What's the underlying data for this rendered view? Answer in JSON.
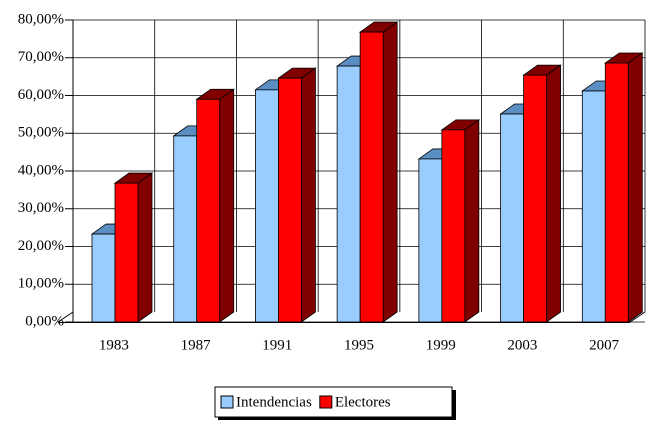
{
  "chart_data": {
    "type": "bar3d",
    "categories": [
      "1983",
      "1987",
      "1991",
      "1995",
      "1999",
      "2003",
      "2007"
    ],
    "series": [
      {
        "name": "Intendencias",
        "color": "#99ccff",
        "side_color": "#5b8fc4",
        "values": [
          23.3,
          49.3,
          61.5,
          67.8,
          43.2,
          55.1,
          61.2
        ]
      },
      {
        "name": "Electores",
        "color": "#ff0000",
        "side_color": "#800000",
        "values": [
          36.8,
          59,
          64.6,
          76.8,
          50.9,
          65.4,
          68.6
        ]
      }
    ],
    "ylim": [
      0,
      80
    ],
    "yticks": [
      {
        "value": 0,
        "label": "0,00%"
      },
      {
        "value": 10,
        "label": "10,00%"
      },
      {
        "value": 20,
        "label": "20,00%"
      },
      {
        "value": 30,
        "label": "30,00%"
      },
      {
        "value": 40,
        "label": "40,00%"
      },
      {
        "value": 50,
        "label": "50,00%"
      },
      {
        "value": 60,
        "label": "60,00%"
      },
      {
        "value": 70,
        "label": "70,00%"
      },
      {
        "value": 80,
        "label": "80,00%"
      }
    ],
    "grid": true
  }
}
